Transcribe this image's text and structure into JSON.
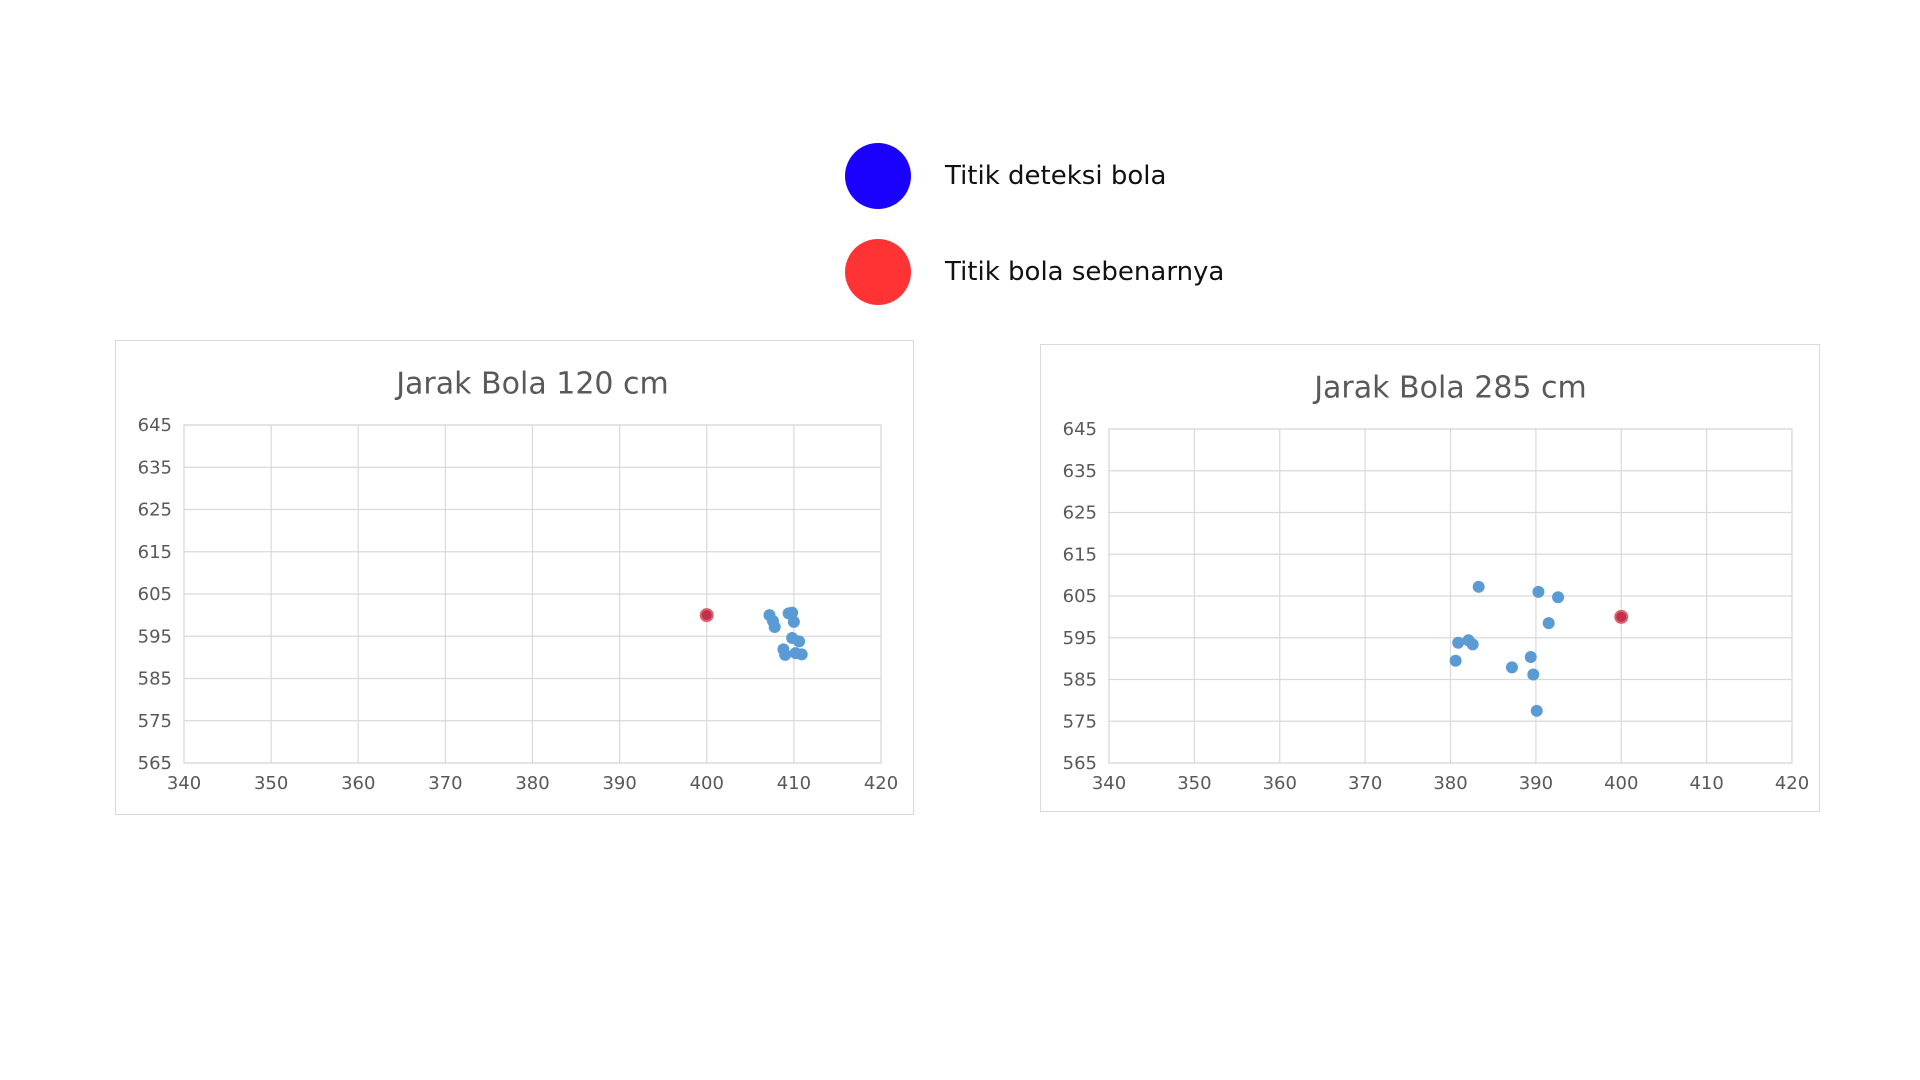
{
  "legend": {
    "items": [
      {
        "label": "Titik deteksi bola",
        "color": "#1a00ff"
      },
      {
        "label": "Titik bola sebenarnya",
        "color": "#ff3333"
      }
    ]
  },
  "colors": {
    "detected_point": "#5b9bd5",
    "actual_point": "#c0304a",
    "actual_point_outline": "#e06070",
    "gridline": "#d9d9d9",
    "axis_text": "#595959"
  },
  "chart_data": [
    {
      "type": "scatter",
      "title": "Jarak Bola 120 cm",
      "xlim": [
        340,
        420
      ],
      "ylim": [
        565,
        645
      ],
      "x_ticks": [
        340,
        350,
        360,
        370,
        380,
        390,
        400,
        410,
        420
      ],
      "y_ticks": [
        565,
        575,
        585,
        595,
        605,
        615,
        625,
        635,
        645
      ],
      "grid": true,
      "series": [
        {
          "role": "detected",
          "points": [
            {
              "x": 407.2,
              "y": 600.0
            },
            {
              "x": 407.6,
              "y": 598.6
            },
            {
              "x": 407.8,
              "y": 597.2
            },
            {
              "x": 409.4,
              "y": 600.4
            },
            {
              "x": 409.8,
              "y": 600.6
            },
            {
              "x": 410.0,
              "y": 598.4
            },
            {
              "x": 409.8,
              "y": 594.6
            },
            {
              "x": 410.6,
              "y": 593.8
            },
            {
              "x": 408.8,
              "y": 591.9
            },
            {
              "x": 409.0,
              "y": 590.6
            },
            {
              "x": 410.2,
              "y": 591.0
            },
            {
              "x": 410.9,
              "y": 590.7
            }
          ]
        },
        {
          "role": "actual",
          "points": [
            {
              "x": 400.0,
              "y": 600.0
            }
          ]
        }
      ]
    },
    {
      "type": "scatter",
      "title": "Jarak Bola 285 cm",
      "xlim": [
        340,
        420
      ],
      "ylim": [
        565,
        645
      ],
      "x_ticks": [
        340,
        350,
        360,
        370,
        380,
        390,
        400,
        410,
        420
      ],
      "y_ticks": [
        565,
        575,
        585,
        595,
        605,
        615,
        625,
        635,
        645
      ],
      "grid": true,
      "series": [
        {
          "role": "detected",
          "points": [
            {
              "x": 383.3,
              "y": 607.2
            },
            {
              "x": 390.3,
              "y": 606.0
            },
            {
              "x": 392.6,
              "y": 604.7
            },
            {
              "x": 391.5,
              "y": 598.5
            },
            {
              "x": 380.9,
              "y": 593.8
            },
            {
              "x": 382.1,
              "y": 594.4
            },
            {
              "x": 382.6,
              "y": 593.4
            },
            {
              "x": 380.6,
              "y": 589.5
            },
            {
              "x": 389.4,
              "y": 590.4
            },
            {
              "x": 387.2,
              "y": 587.9
            },
            {
              "x": 389.7,
              "y": 586.2
            },
            {
              "x": 390.1,
              "y": 577.5
            }
          ]
        },
        {
          "role": "actual",
          "points": [
            {
              "x": 400.0,
              "y": 600.0
            }
          ]
        }
      ]
    }
  ]
}
